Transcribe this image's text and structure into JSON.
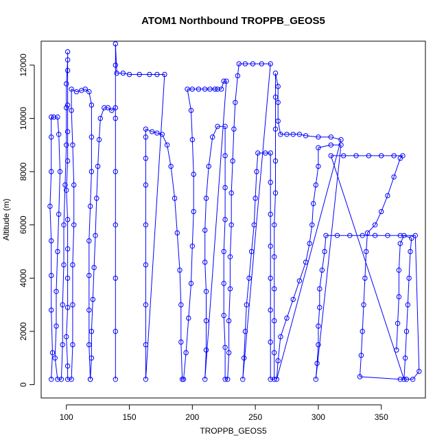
{
  "chart_data": {
    "type": "line",
    "title": "ATOM1 Northbound TROPPB_GEOS5",
    "xlabel": "TROPPB_GEOS5",
    "ylabel": "Altitude (m)",
    "xlim": [
      80,
      385
    ],
    "ylim": [
      -500,
      12900
    ],
    "xticks": [
      100,
      150,
      200,
      250,
      300,
      350
    ],
    "yticks": [
      0,
      2000,
      4000,
      6000,
      8000,
      10000,
      12000
    ],
    "grid": false,
    "legend": "none",
    "marker": "open-circle",
    "series": [
      {
        "color": "#0000ff",
        "points": [
          [
            88,
            200
          ],
          [
            89,
            1200
          ],
          [
            88,
            2800
          ],
          [
            88,
            4100
          ],
          [
            88,
            5400
          ],
          [
            87,
            6700
          ],
          [
            88,
            8000
          ],
          [
            88,
            9300
          ],
          [
            88,
            10050
          ],
          [
            90,
            10050
          ],
          [
            93,
            10050
          ],
          [
            94,
            9400
          ],
          [
            95,
            8000
          ],
          [
            94,
            6400
          ],
          [
            93,
            5000
          ],
          [
            92,
            3500
          ],
          [
            92,
            2200
          ],
          [
            91,
            1000
          ],
          [
            93,
            200
          ],
          [
            96,
            200
          ],
          [
            97,
            1500
          ],
          [
            97,
            3000
          ],
          [
            98,
            4500
          ],
          [
            98,
            6000
          ],
          [
            99,
            7500
          ],
          [
            100,
            9000
          ],
          [
            100,
            10400
          ],
          [
            100,
            11300
          ],
          [
            101,
            12200
          ],
          [
            101,
            12500
          ],
          [
            101,
            11800
          ],
          [
            101,
            10500
          ],
          [
            101,
            9500
          ],
          [
            101,
            8400
          ],
          [
            100,
            7300
          ],
          [
            101,
            6200
          ],
          [
            101,
            5100
          ],
          [
            101,
            4000
          ],
          [
            101,
            2900
          ],
          [
            100,
            1800
          ],
          [
            101,
            700
          ],
          [
            101,
            200
          ],
          [
            104,
            200
          ],
          [
            105,
            1500
          ],
          [
            105,
            3000
          ],
          [
            105,
            4500
          ],
          [
            106,
            6000
          ],
          [
            106,
            7500
          ],
          [
            105,
            9000
          ],
          [
            104,
            10300
          ],
          [
            104,
            11100
          ],
          [
            108,
            11000
          ],
          [
            112,
            11050
          ],
          [
            115,
            11100
          ],
          [
            118,
            11000
          ],
          [
            120,
            10500
          ],
          [
            120,
            9300
          ],
          [
            120,
            8000
          ],
          [
            119,
            6700
          ],
          [
            118,
            5400
          ],
          [
            118,
            4100
          ],
          [
            118,
            2800
          ],
          [
            118,
            1500
          ],
          [
            119,
            200
          ],
          [
            119,
            200
          ],
          [
            120,
            1000
          ],
          [
            120,
            2000
          ],
          [
            121,
            3200
          ],
          [
            122,
            4400
          ],
          [
            123,
            5600
          ],
          [
            124,
            7000
          ],
          [
            125,
            8200
          ],
          [
            126,
            9200
          ],
          [
            127,
            10000
          ],
          [
            130,
            10400
          ],
          [
            133,
            10400
          ],
          [
            136,
            10300
          ],
          [
            139,
            10400
          ],
          [
            139,
            200
          ],
          [
            139,
            2000
          ],
          [
            139,
            4000
          ],
          [
            139,
            6000
          ],
          [
            139,
            8000
          ],
          [
            139,
            10000
          ],
          [
            139,
            12000
          ],
          [
            139,
            12800
          ],
          [
            140,
            11700
          ],
          [
            145,
            11700
          ],
          [
            150,
            11650
          ],
          [
            158,
            11650
          ],
          [
            166,
            11650
          ],
          [
            172,
            11650
          ],
          [
            178,
            11650
          ],
          [
            163,
            200
          ],
          [
            163,
            1500
          ],
          [
            163,
            3000
          ],
          [
            163,
            4500
          ],
          [
            163,
            6000
          ],
          [
            163,
            7500
          ],
          [
            163,
            8500
          ],
          [
            163,
            9300
          ],
          [
            163,
            9600
          ],
          [
            168,
            9500
          ],
          [
            172,
            9450
          ],
          [
            176,
            9400
          ],
          [
            180,
            9000
          ],
          [
            183,
            8200
          ],
          [
            186,
            7000
          ],
          [
            188,
            5700
          ],
          [
            190,
            4300
          ],
          [
            191,
            3000
          ],
          [
            191,
            1600
          ],
          [
            192,
            200
          ],
          [
            193,
            200
          ],
          [
            195,
            1200
          ],
          [
            197,
            2500
          ],
          [
            199,
            3800
          ],
          [
            200,
            5200
          ],
          [
            201,
            6500
          ],
          [
            201,
            7900
          ],
          [
            200,
            9200
          ],
          [
            199,
            10300
          ],
          [
            196,
            11100
          ],
          [
            200,
            11100
          ],
          [
            205,
            11100
          ],
          [
            210,
            11100
          ],
          [
            214,
            11100
          ],
          [
            218,
            11100
          ],
          [
            220,
            11100
          ],
          [
            223,
            11100
          ],
          [
            225,
            11400
          ],
          [
            227,
            11400
          ],
          [
            210,
            200
          ],
          [
            211,
            1300
          ],
          [
            211,
            2400
          ],
          [
            211,
            3500
          ],
          [
            210,
            4600
          ],
          [
            210,
            5800
          ],
          [
            211,
            7000
          ],
          [
            213,
            8200
          ],
          [
            216,
            9300
          ],
          [
            220,
            9700
          ],
          [
            226,
            9700
          ],
          [
            226,
            8600
          ],
          [
            226,
            7400
          ],
          [
            226,
            6200
          ],
          [
            225,
            5000
          ],
          [
            225,
            3800
          ],
          [
            225,
            2600
          ],
          [
            226,
            1400
          ],
          [
            226,
            200
          ],
          [
            228,
            200
          ],
          [
            229,
            1200
          ],
          [
            229,
            2400
          ],
          [
            230,
            3600
          ],
          [
            230,
            4800
          ],
          [
            231,
            6000
          ],
          [
            231,
            7200
          ],
          [
            232,
            8400
          ],
          [
            233,
            9600
          ],
          [
            234,
            10600
          ],
          [
            236,
            11600
          ],
          [
            237,
            12050
          ],
          [
            242,
            12050
          ],
          [
            248,
            12050
          ],
          [
            255,
            12050
          ],
          [
            262,
            12050
          ],
          [
            240,
            200
          ],
          [
            241,
            1000
          ],
          [
            242,
            2000
          ],
          [
            243,
            3000
          ],
          [
            245,
            4000
          ],
          [
            247,
            5000
          ],
          [
            249,
            6000
          ],
          [
            250,
            7000
          ],
          [
            251,
            8000
          ],
          [
            252,
            8700
          ],
          [
            258,
            8700
          ],
          [
            262,
            8700
          ],
          [
            262,
            7600
          ],
          [
            262,
            6400
          ],
          [
            262,
            5200
          ],
          [
            262,
            4000
          ],
          [
            262,
            2800
          ],
          [
            262,
            1600
          ],
          [
            262,
            200
          ],
          [
            265,
            200
          ],
          [
            265,
            1200
          ],
          [
            265,
            2400
          ],
          [
            265,
            3600
          ],
          [
            265,
            4800
          ],
          [
            265,
            6000
          ],
          [
            266,
            7200
          ],
          [
            266,
            8400
          ],
          [
            266,
            9600
          ],
          [
            266,
            10800
          ],
          [
            266,
            11700
          ],
          [
            268,
            11200
          ],
          [
            268,
            10600
          ],
          [
            268,
            9900
          ],
          [
            270,
            9400
          ],
          [
            275,
            9400
          ],
          [
            280,
            9400
          ],
          [
            285,
            9400
          ],
          [
            290,
            9350
          ],
          [
            300,
            9300
          ],
          [
            310,
            9300
          ],
          [
            318,
            9200
          ],
          [
            267,
            200
          ],
          [
            268,
            900
          ],
          [
            270,
            1800
          ],
          [
            275,
            2500
          ],
          [
            280,
            3200
          ],
          [
            285,
            3900
          ],
          [
            290,
            4600
          ],
          [
            293,
            5300
          ],
          [
            295,
            6000
          ],
          [
            296,
            6800
          ],
          [
            298,
            7500
          ],
          [
            300,
            8200
          ],
          [
            300,
            8900
          ],
          [
            310,
            9000
          ],
          [
            318,
            9000
          ],
          [
            298,
            200
          ],
          [
            299,
            800
          ],
          [
            300,
            1500
          ],
          [
            300,
            2200
          ],
          [
            301,
            2900
          ],
          [
            301,
            3600
          ],
          [
            303,
            4300
          ],
          [
            305,
            5000
          ],
          [
            306,
            5600
          ],
          [
            315,
            5600
          ],
          [
            325,
            5600
          ],
          [
            335,
            5600
          ],
          [
            345,
            5600
          ],
          [
            355,
            5600
          ],
          [
            365,
            5600
          ],
          [
            377,
            5600
          ],
          [
            380,
            500
          ],
          [
            375,
            200
          ],
          [
            370,
            200
          ],
          [
            365,
            200
          ],
          [
            333,
            300
          ],
          [
            334,
            1100
          ],
          [
            335,
            2000
          ],
          [
            336,
            3000
          ],
          [
            337,
            4000
          ],
          [
            338,
            5000
          ],
          [
            339,
            5700
          ],
          [
            345,
            6000
          ],
          [
            350,
            6500
          ],
          [
            355,
            7100
          ],
          [
            360,
            7800
          ],
          [
            365,
            8500
          ],
          [
            367,
            8600
          ],
          [
            360,
            8600
          ],
          [
            350,
            8600
          ],
          [
            340,
            8600
          ],
          [
            330,
            8600
          ],
          [
            320,
            8600
          ],
          [
            310,
            8600
          ],
          [
            368,
            200
          ],
          [
            369,
            1000
          ],
          [
            370,
            2000
          ],
          [
            371,
            3000
          ],
          [
            372,
            4000
          ],
          [
            373,
            5000
          ],
          [
            374,
            5500
          ],
          [
            368,
            5600
          ],
          [
            365,
            5300
          ],
          [
            364,
            4300
          ],
          [
            364,
            3300
          ],
          [
            363,
            2300
          ],
          [
            362,
            1300
          ]
        ]
      }
    ]
  }
}
